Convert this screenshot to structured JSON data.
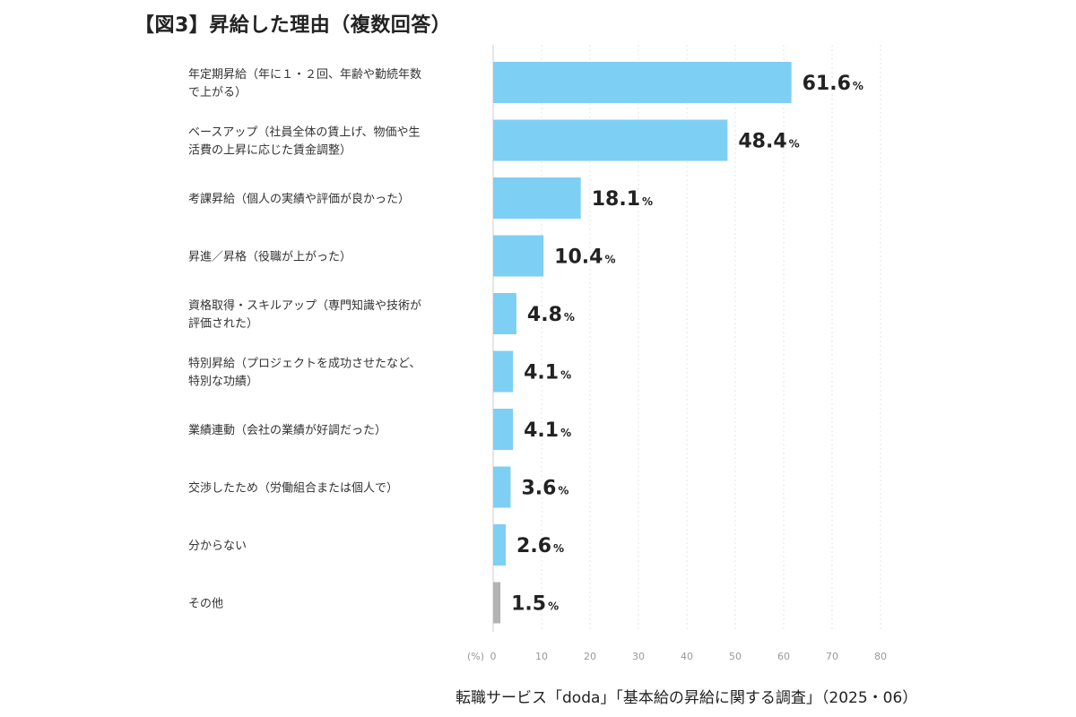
{
  "title": "【図3】昇給した理由（複数回答）",
  "source": "転職サービス「doda」「基本給の昇給に関する調査」（2025・06）",
  "chart_data": {
    "type": "bar",
    "orientation": "horizontal",
    "categories": [
      [
        "年定期昇給（年に１・２回、年齢や勤続年数",
        "で上がる）"
      ],
      [
        "ベースアップ（社員全体の賃上げ、物価や生",
        "活費の上昇に応じた賃金調整）"
      ],
      [
        "考課昇給（個人の実績や評価が良かった）"
      ],
      [
        "昇進／昇格（役職が上がった）"
      ],
      [
        "資格取得・スキルアップ（専門知識や技術が",
        "評価された）"
      ],
      [
        "特別昇給（プロジェクトを成功させたなど、",
        "特別な功績）"
      ],
      [
        "業績連動（会社の業績が好調だった）"
      ],
      [
        "交渉したため（労働組合または個人で）"
      ],
      [
        "分からない"
      ],
      [
        "その他"
      ]
    ],
    "values": [
      61.6,
      48.4,
      18.1,
      10.4,
      4.8,
      4.1,
      4.1,
      3.6,
      2.6,
      1.5
    ],
    "value_labels": [
      "61.6",
      "48.4",
      "18.1",
      "10.4",
      "4.8",
      "4.1",
      "4.1",
      "3.6",
      "2.6",
      "1.5"
    ],
    "value_unit": "%",
    "colors": [
      "#7ecff4",
      "#7ecff4",
      "#7ecff4",
      "#7ecff4",
      "#7ecff4",
      "#7ecff4",
      "#7ecff4",
      "#7ecff4",
      "#7ecff4",
      "#b3b3b3"
    ],
    "xlim": [
      0,
      80
    ],
    "xticks": [
      0,
      10,
      20,
      30,
      40,
      50,
      60,
      70,
      80
    ],
    "xunit_label": "(%)",
    "grid": true
  }
}
